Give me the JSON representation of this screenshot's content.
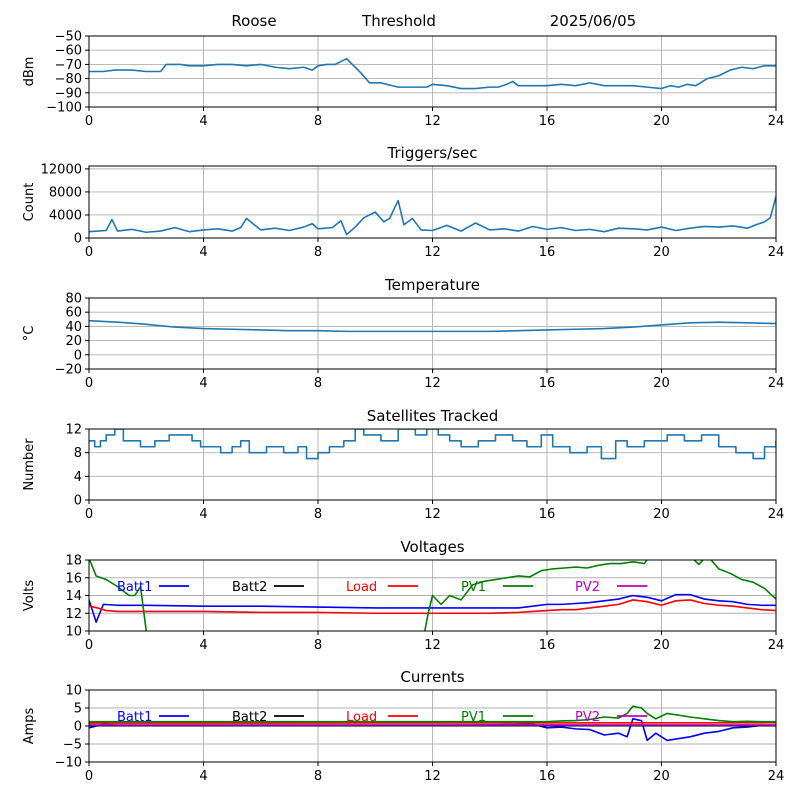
{
  "header": {
    "site": "Roose",
    "label": "Threshold",
    "date": "2025/06/05"
  },
  "colors": {
    "series_default": "#1f77b4",
    "batt1": "#0000ff",
    "batt2": "#000000",
    "load": "#ff0000",
    "pv1": "#008000",
    "pv2": "#bf00bf",
    "grid": "#b0b0b0"
  },
  "chart_data": [
    {
      "type": "line",
      "id": "signal",
      "title": "",
      "xlabel": "",
      "ylabel": "dBm",
      "xlim": [
        0,
        24
      ],
      "ylim": [
        -100,
        -50
      ],
      "xticks": [
        "0",
        "4",
        "8",
        "12",
        "16",
        "20",
        "24"
      ],
      "yticks": [
        "−50",
        "−60",
        "−70",
        "−80",
        "−90",
        "−100"
      ],
      "ytick_values": [
        -50,
        -60,
        -70,
        -80,
        -90,
        -100
      ],
      "grid": true,
      "series": [
        {
          "color": "#1f77b4",
          "x": [
            0,
            0.5,
            0.9,
            1.5,
            2.0,
            2.5,
            2.7,
            3.2,
            3.5,
            4.0,
            4.5,
            5.0,
            5.5,
            6.0,
            6.5,
            7.0,
            7.5,
            7.8,
            8.0,
            8.3,
            8.6,
            8.8,
            9.0,
            9.2,
            9.5,
            9.8,
            10.2,
            10.8,
            11.2,
            11.8,
            12.0,
            12.5,
            13.0,
            13.5,
            14.0,
            14.3,
            14.6,
            14.8,
            15.0,
            15.5,
            16.0,
            16.5,
            17.0,
            17.5,
            18.0,
            18.5,
            19.0,
            19.5,
            20.0,
            20.3,
            20.6,
            20.9,
            21.2,
            21.6,
            22.0,
            22.4,
            22.8,
            23.2,
            23.6,
            24.0
          ],
          "y": [
            -75,
            -75,
            -74,
            -74,
            -75,
            -75,
            -70,
            -70,
            -71,
            -71,
            -70,
            -70,
            -71,
            -70,
            -72,
            -73,
            -72,
            -74,
            -71,
            -70,
            -70,
            -68,
            -66,
            -70,
            -76,
            -83,
            -83,
            -86,
            -86,
            -86,
            -84,
            -85,
            -87,
            -87,
            -86,
            -86,
            -84,
            -82,
            -85,
            -85,
            -85,
            -84,
            -85,
            -83,
            -85,
            -85,
            -85,
            -86,
            -87,
            -85,
            -86,
            -84,
            -85,
            -80,
            -78,
            -74,
            -72,
            -73,
            -71,
            -71
          ]
        }
      ]
    },
    {
      "type": "line",
      "id": "triggers",
      "title": "Triggers/sec",
      "xlabel": "",
      "ylabel": "Count",
      "xlim": [
        0,
        24
      ],
      "ylim": [
        0,
        12500
      ],
      "xticks": [
        "0",
        "4",
        "8",
        "12",
        "16",
        "20",
        "24"
      ],
      "yticks": [
        "0",
        "4000",
        "8000",
        "12000"
      ],
      "ytick_values": [
        0,
        4000,
        8000,
        12000
      ],
      "grid": true,
      "series": [
        {
          "color": "#1f77b4",
          "x": [
            0,
            0.3,
            0.6,
            0.8,
            1.0,
            1.5,
            2.0,
            2.5,
            3.0,
            3.5,
            4.0,
            4.5,
            5.0,
            5.3,
            5.5,
            6.0,
            6.5,
            7.0,
            7.5,
            7.8,
            8.0,
            8.5,
            8.8,
            9.0,
            9.3,
            9.6,
            10.0,
            10.3,
            10.5,
            10.8,
            11.0,
            11.3,
            11.6,
            12.0,
            12.5,
            13.0,
            13.5,
            14.0,
            14.5,
            15.0,
            15.5,
            16.0,
            16.5,
            17.0,
            17.5,
            18.0,
            18.5,
            19.0,
            19.5,
            20.0,
            20.5,
            21.0,
            21.5,
            22.0,
            22.5,
            23.0,
            23.3,
            23.6,
            23.8,
            24.0
          ],
          "y": [
            1100,
            1200,
            1300,
            3200,
            1200,
            1500,
            1000,
            1200,
            1800,
            1100,
            1400,
            1600,
            1200,
            1800,
            3400,
            1400,
            1700,
            1300,
            1900,
            2500,
            1600,
            1800,
            3000,
            600,
            1900,
            3500,
            4500,
            2800,
            3400,
            6500,
            2300,
            3400,
            1400,
            1300,
            2200,
            1200,
            2600,
            1400,
            1600,
            1200,
            2000,
            1500,
            1800,
            1300,
            1500,
            1100,
            1700,
            1600,
            1400,
            1900,
            1300,
            1700,
            2000,
            1900,
            2100,
            1700,
            2300,
            2800,
            3500,
            7200
          ]
        }
      ]
    },
    {
      "type": "line",
      "id": "temperature",
      "title": "Temperature",
      "xlabel": "",
      "ylabel": "°C",
      "xlim": [
        0,
        24
      ],
      "ylim": [
        -20,
        80
      ],
      "xticks": [
        "0",
        "4",
        "8",
        "12",
        "16",
        "20",
        "24"
      ],
      "yticks": [
        "80",
        "60",
        "40",
        "20",
        "0",
        "−20"
      ],
      "ytick_values": [
        80,
        60,
        40,
        20,
        0,
        -20
      ],
      "grid": true,
      "series": [
        {
          "color": "#1f77b4",
          "x": [
            0,
            1,
            2,
            3,
            4,
            5,
            6,
            7,
            8,
            9,
            10,
            11,
            12,
            13,
            14,
            15,
            16,
            17,
            18,
            19,
            20,
            21,
            22,
            23,
            24
          ],
          "y": [
            48,
            46,
            43,
            39,
            37,
            36,
            35,
            34,
            34,
            33,
            33,
            33,
            33,
            33,
            33,
            34,
            35,
            36,
            37,
            39,
            42,
            45,
            46,
            45,
            44
          ]
        }
      ]
    },
    {
      "type": "line",
      "id": "satellites",
      "title": "Satellites Tracked",
      "xlabel": "",
      "ylabel": "Number",
      "xlim": [
        0,
        24
      ],
      "ylim": [
        0,
        12
      ],
      "xticks": [
        "0",
        "4",
        "8",
        "12",
        "16",
        "20",
        "24"
      ],
      "yticks": [
        "0",
        "4",
        "8",
        "12"
      ],
      "ytick_values": [
        0,
        4,
        8,
        12
      ],
      "grid": true,
      "step": true,
      "series": [
        {
          "color": "#1f77b4",
          "x": [
            0,
            0.2,
            0.4,
            0.6,
            0.9,
            1.2,
            1.8,
            2.3,
            2.8,
            3.6,
            3.9,
            4.6,
            5.0,
            5.3,
            5.6,
            6.2,
            6.8,
            7.3,
            7.6,
            8.0,
            8.4,
            8.9,
            9.3,
            9.6,
            10.2,
            10.8,
            11.4,
            11.8,
            12.2,
            12.6,
            13.0,
            13.6,
            14.2,
            14.8,
            15.3,
            15.8,
            16.2,
            16.8,
            17.4,
            17.9,
            18.4,
            18.8,
            19.4,
            20.2,
            20.8,
            21.4,
            22.0,
            22.6,
            23.2,
            23.6,
            24.0
          ],
          "y": [
            10,
            9,
            10,
            11,
            12,
            10,
            9,
            10,
            11,
            10,
            9,
            8,
            9,
            10,
            8,
            9,
            8,
            9,
            7,
            8,
            9,
            10,
            12,
            11,
            10,
            12,
            11,
            12,
            11,
            10,
            9,
            10,
            11,
            10,
            9,
            11,
            9,
            8,
            9,
            7,
            10,
            9,
            10,
            11,
            10,
            11,
            9,
            8,
            7,
            9,
            10
          ]
        }
      ]
    },
    {
      "type": "line",
      "id": "voltages",
      "title": "Voltages",
      "xlabel": "",
      "ylabel": "Volts",
      "xlim": [
        0,
        24
      ],
      "ylim": [
        10,
        18
      ],
      "xticks": [
        "0",
        "4",
        "8",
        "12",
        "16",
        "20",
        "24"
      ],
      "yticks": [
        "10",
        "12",
        "14",
        "16",
        "18"
      ],
      "ytick_values": [
        10,
        12,
        14,
        16,
        18
      ],
      "grid": true,
      "legend": "top",
      "series": [
        {
          "name": "Batt1",
          "color": "#0000ff",
          "x": [
            0,
            0.25,
            0.5,
            1.0,
            2.0,
            4.0,
            6.0,
            8.0,
            10.0,
            12.0,
            14.0,
            15.0,
            15.5,
            16.0,
            16.5,
            17.0,
            17.5,
            18.0,
            18.5,
            19.0,
            19.5,
            20.0,
            20.5,
            21.0,
            21.5,
            22.0,
            22.5,
            23.0,
            23.5,
            24.0
          ],
          "y": [
            13.5,
            11.0,
            13.0,
            12.9,
            12.9,
            12.8,
            12.8,
            12.7,
            12.6,
            12.6,
            12.6,
            12.6,
            12.8,
            13.0,
            13.0,
            13.1,
            13.2,
            13.4,
            13.6,
            14.0,
            13.8,
            13.4,
            14.1,
            14.1,
            13.6,
            13.4,
            13.3,
            13.0,
            12.9,
            12.9
          ]
        },
        {
          "name": "Batt2",
          "color": "#000000",
          "x": [],
          "y": []
        },
        {
          "name": "Load",
          "color": "#ff0000",
          "x": [
            0,
            0.3,
            0.6,
            1.0,
            2.0,
            4.0,
            6.0,
            8.0,
            10.0,
            12.0,
            14.0,
            15.0,
            15.5,
            16.0,
            16.5,
            17.0,
            17.5,
            18.0,
            18.5,
            19.0,
            19.5,
            20.0,
            20.5,
            21.0,
            21.5,
            22.0,
            22.5,
            23.0,
            23.5,
            24.0
          ],
          "y": [
            12.8,
            12.6,
            12.3,
            12.2,
            12.2,
            12.2,
            12.1,
            12.1,
            12.0,
            12.0,
            12.0,
            12.1,
            12.2,
            12.3,
            12.4,
            12.4,
            12.6,
            12.8,
            13.0,
            13.5,
            13.3,
            12.9,
            13.4,
            13.5,
            13.1,
            12.9,
            12.8,
            12.6,
            12.4,
            12.3
          ]
        },
        {
          "name": "PV1",
          "color": "#008000",
          "x": [
            0,
            0.25,
            0.6,
            1.0,
            1.4,
            1.6,
            1.8,
            2.0,
            2.1,
            11.7,
            11.85,
            12.0,
            12.3,
            12.6,
            13.0,
            13.4,
            13.8,
            14.2,
            14.6,
            15.0,
            15.4,
            15.8,
            16.2,
            16.6,
            17.0,
            17.4,
            17.8,
            18.2,
            18.6,
            19.0,
            19.4,
            19.6,
            19.8,
            20.2,
            20.6,
            21.0,
            21.3,
            21.6,
            22.0,
            22.4,
            22.8,
            23.2,
            23.6,
            24.0
          ],
          "y": [
            18.2,
            16.2,
            15.8,
            15.0,
            14.0,
            14.0,
            15.0,
            10.0,
            9.5,
            9.5,
            12.0,
            14.0,
            13.0,
            14.0,
            13.5,
            15.2,
            15.6,
            15.8,
            16.0,
            16.2,
            16.1,
            16.8,
            17.0,
            17.1,
            17.2,
            17.1,
            17.4,
            17.6,
            17.6,
            17.8,
            17.6,
            18.5,
            18.5,
            18.5,
            18.5,
            18.5,
            17.5,
            18.5,
            17.0,
            16.5,
            15.8,
            15.5,
            14.8,
            13.6
          ]
        },
        {
          "name": "PV2",
          "color": "#bf00bf",
          "x": [],
          "y": []
        }
      ]
    },
    {
      "type": "line",
      "id": "currents",
      "title": "Currents",
      "xlabel": "",
      "ylabel": "Amps",
      "xlim": [
        0,
        24
      ],
      "ylim": [
        -10,
        10
      ],
      "xticks": [
        "0",
        "4",
        "8",
        "12",
        "16",
        "20",
        "24"
      ],
      "yticks": [
        "10",
        "5",
        "0",
        "−5",
        "−10"
      ],
      "ytick_values": [
        10,
        5,
        0,
        -5,
        -10
      ],
      "grid": true,
      "legend": "top",
      "series": [
        {
          "name": "Batt1",
          "color": "#0000ff",
          "x": [
            0,
            0.5,
            1,
            2,
            4,
            6,
            8,
            10,
            12,
            14,
            15.5,
            16.0,
            16.5,
            17.0,
            17.5,
            18.0,
            18.5,
            18.8,
            19.0,
            19.3,
            19.5,
            19.8,
            20.2,
            20.6,
            21.0,
            21.5,
            22.0,
            22.5,
            23.0,
            23.5,
            24.0
          ],
          "y": [
            -0.5,
            0.5,
            0.2,
            0.2,
            0.2,
            0.2,
            0.2,
            0.2,
            0.2,
            0.3,
            0.5,
            -0.5,
            -0.3,
            -0.8,
            -1.0,
            -2.5,
            -2.0,
            -3.0,
            2.0,
            1.5,
            -4.0,
            -2.0,
            -4.0,
            -3.5,
            -3.0,
            -2.0,
            -1.5,
            -0.5,
            -0.3,
            0.2,
            0.2
          ]
        },
        {
          "name": "Batt2",
          "color": "#000000",
          "x": [
            0,
            24
          ],
          "y": [
            0.1,
            0.1
          ]
        },
        {
          "name": "Load",
          "color": "#ff0000",
          "x": [
            0,
            24
          ],
          "y": [
            0.8,
            0.9
          ]
        },
        {
          "name": "PV1",
          "color": "#008000",
          "x": [
            0,
            2,
            4,
            8,
            12,
            14,
            15,
            16,
            16.5,
            17.0,
            17.5,
            18.0,
            18.5,
            18.8,
            19.0,
            19.3,
            19.5,
            19.8,
            20.2,
            20.6,
            21.0,
            21.5,
            22.0,
            22.5,
            23.0,
            23.5,
            24.0
          ],
          "y": [
            1.2,
            1.2,
            1.2,
            1.2,
            1.2,
            1.2,
            1.2,
            1.2,
            1.4,
            1.5,
            1.8,
            2.5,
            2.2,
            3.5,
            5.5,
            5.0,
            3.5,
            2.0,
            3.5,
            3.0,
            2.5,
            2.0,
            1.5,
            1.2,
            1.3,
            1.2,
            1.2
          ]
        },
        {
          "name": "PV2",
          "color": "#bf00bf",
          "x": [
            0,
            24
          ],
          "y": [
            0.3,
            0.3
          ]
        }
      ]
    }
  ]
}
